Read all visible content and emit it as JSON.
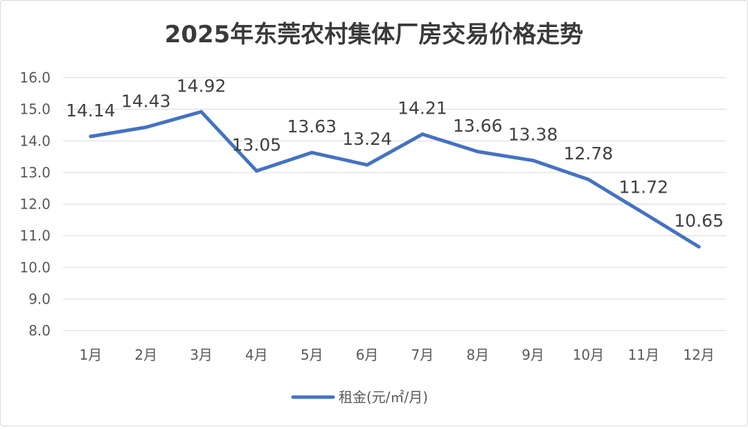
{
  "chart_data": {
    "type": "line",
    "title": "2025年东莞农村集体厂房交易价格走势",
    "categories": [
      "1月",
      "2月",
      "3月",
      "4月",
      "5月",
      "6月",
      "7月",
      "8月",
      "9月",
      "10月",
      "11月",
      "12月"
    ],
    "series": [
      {
        "name": "租金(元/㎡/月)",
        "values": [
          14.14,
          14.43,
          14.92,
          13.05,
          13.63,
          13.24,
          14.21,
          13.66,
          13.38,
          12.78,
          11.72,
          10.65
        ],
        "labels": [
          "14.14",
          "14.43",
          "14.92",
          "13.05",
          "13.63",
          "13.24",
          "14.21",
          "13.66",
          "13.38",
          "12.78",
          "11.72",
          "10.65"
        ],
        "color": "#4472c4"
      }
    ],
    "yticks": [
      "8.0",
      "9.0",
      "10.0",
      "11.0",
      "12.0",
      "13.0",
      "14.0",
      "15.0",
      "16.0"
    ],
    "ylim": [
      8,
      16
    ],
    "grid": true,
    "legend": "bottom"
  }
}
